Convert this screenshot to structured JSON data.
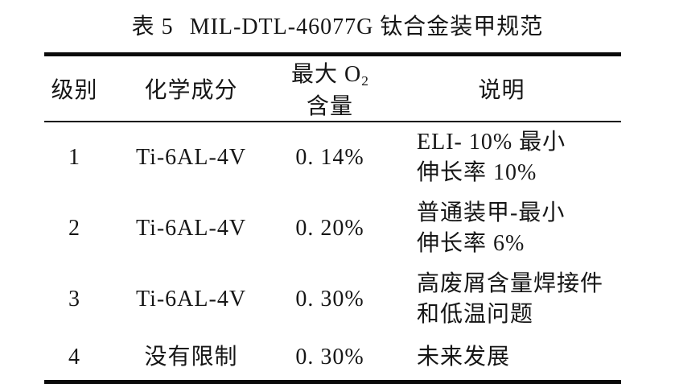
{
  "caption": {
    "label": "表 5",
    "text": "MIL-DTL-46077G 钛合金装甲规范"
  },
  "colors": {
    "background": "#ffffff",
    "text": "#161616",
    "rule": "#0a0a0a"
  },
  "table": {
    "columns": [
      {
        "label": "级别"
      },
      {
        "label": "化学成分"
      },
      {
        "label_prefix": "最大 O",
        "label_sub": "2",
        "label_suffix": " 含量"
      },
      {
        "label": "说明"
      }
    ],
    "rows": [
      {
        "grade": "1",
        "composition": "Ti-6AL-4V",
        "o2": "0. 14%",
        "desc_lines": [
          "ELI- 10% 最小",
          "伸长率 10%"
        ]
      },
      {
        "grade": "2",
        "composition": "Ti-6AL-4V",
        "o2": "0. 20%",
        "desc_lines": [
          "普通装甲-最小",
          "伸长率 6%"
        ]
      },
      {
        "grade": "3",
        "composition": "Ti-6AL-4V",
        "o2": "0. 30%",
        "desc_lines": [
          "高废屑含量焊接件",
          "和低温问题"
        ]
      },
      {
        "grade": "4",
        "composition": "没有限制",
        "o2": "0. 30%",
        "desc_lines": [
          "未来发展"
        ]
      }
    ]
  }
}
